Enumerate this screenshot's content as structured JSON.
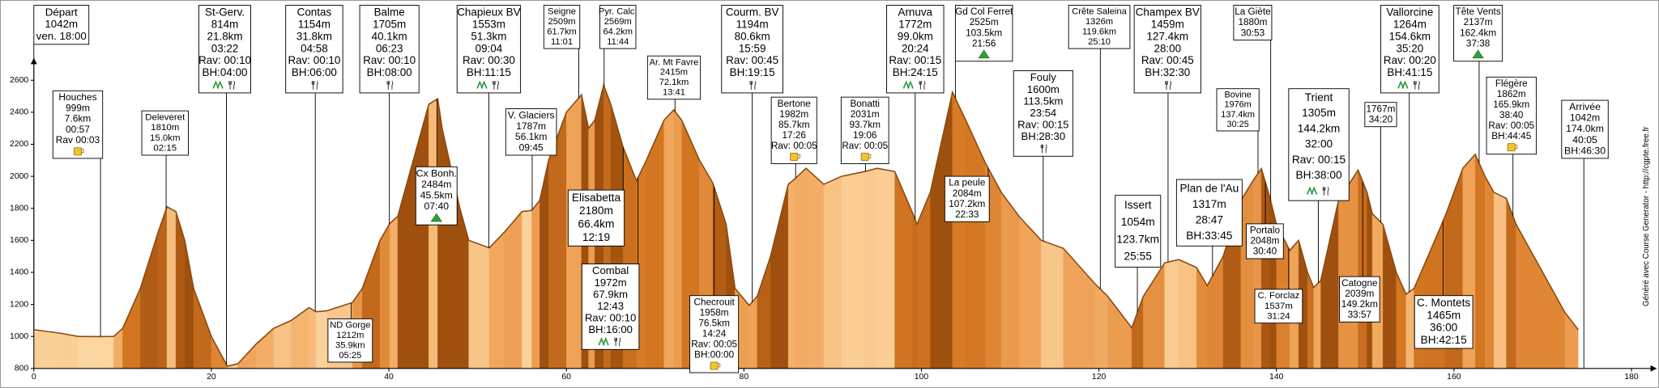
{
  "chart_data": {
    "type": "area",
    "xlim": [
      0,
      180
    ],
    "xticks": [
      0,
      20,
      40,
      60,
      80,
      100,
      120,
      140,
      160,
      180
    ],
    "ylim": [
      800,
      2700
    ],
    "yticks": [
      800,
      1000,
      1200,
      1400,
      1600,
      1800,
      2000,
      2200,
      2400,
      2600
    ],
    "color": "#8a4a10",
    "credit": "Généré avec Course Generator - http://cgpte.free.fr",
    "profile": {
      "x": [
        0,
        3,
        5,
        7.6,
        9,
        10,
        12,
        14,
        15,
        16,
        17,
        18,
        20,
        21.8,
        23,
        25,
        27,
        29,
        31,
        31.8,
        33,
        35.9,
        37,
        38,
        39,
        40.1,
        41,
        43,
        44.5,
        45.5,
        46,
        48,
        49,
        51.3,
        53,
        55,
        56.1,
        57,
        58,
        60,
        61.7,
        62.5,
        63.2,
        64.2,
        65,
        66.4,
        67.9,
        69,
        71,
        72.1,
        73,
        75,
        76.5,
        78,
        79,
        80.6,
        81.5,
        83,
        85,
        85.7,
        87,
        89,
        91,
        93.7,
        95,
        97,
        99,
        99.5,
        101,
        103.5,
        105,
        107.2,
        109,
        111,
        113.5,
        116,
        119.6,
        121,
        123.7,
        125,
        127.4,
        129,
        131,
        132.2,
        134,
        136,
        137.4,
        138.3,
        139.2,
        140,
        141.5,
        142.5,
        143.5,
        144.2,
        145,
        147,
        149.2,
        150.2,
        150.8,
        152,
        153.5,
        154.6,
        155.5,
        156.8,
        159,
        161,
        162.4,
        163.5,
        164.5,
        165.9,
        167,
        169,
        171,
        172.5,
        174
      ],
      "values": [
        1042,
        1020,
        1000,
        999,
        1000,
        1050,
        1300,
        1650,
        1810,
        1780,
        1600,
        1300,
        1000,
        814,
        830,
        950,
        1050,
        1100,
        1180,
        1154,
        1160,
        1212,
        1300,
        1450,
        1600,
        1705,
        1750,
        2150,
        2450,
        2484,
        2300,
        1800,
        1600,
        1553,
        1650,
        1780,
        1787,
        1850,
        2100,
        2400,
        2509,
        2300,
        2350,
        2569,
        2450,
        2180,
        1972,
        2100,
        2350,
        2415,
        2350,
        2100,
        1958,
        1700,
        1300,
        1194,
        1250,
        1500,
        1950,
        1982,
        2050,
        1950,
        2000,
        2031,
        2050,
        2030,
        1772,
        1700,
        1900,
        2525,
        2350,
        2084,
        1900,
        1750,
        1600,
        1550,
        1326,
        1250,
        1054,
        1250,
        1459,
        1480,
        1430,
        1317,
        1500,
        1850,
        1976,
        2048,
        1880,
        1700,
        1537,
        1600,
        1400,
        1305,
        1350,
        1850,
        2039,
        1900,
        1767,
        1700,
        1400,
        1264,
        1300,
        1465,
        1750,
        2050,
        2137,
        2000,
        1900,
        1862,
        1700,
        1500,
        1300,
        1150,
        1042
      ]
    },
    "annotations": [
      [
        "Départ",
        "1042m",
        "ven. 18:00"
      ],
      [
        "Houches",
        "999m",
        "7.6km",
        "00:57",
        "Rav 00:03"
      ],
      [
        "Deleveret",
        "1810m",
        "15.0km",
        "02:15"
      ],
      [
        "St-Gerv.",
        "814m",
        "21.8km",
        "03:22",
        "Rav: 00:10",
        "BH:04:00"
      ],
      [
        "Contas",
        "1154m",
        "31.8km",
        "04:58",
        "Rav: 00:10",
        "BH:06:00"
      ],
      [
        "ND Gorge",
        "1212m",
        "35.9km",
        "05:25"
      ],
      [
        "Balme",
        "1705m",
        "40.1km",
        "06:23",
        "Rav: 00:10",
        "BH:08:00"
      ],
      [
        "Cx Bonh.",
        "2484m",
        "45.5km",
        "07:40"
      ],
      [
        "Chapieux BV",
        "1553m",
        "51.3km",
        "09:04",
        "Rav: 00:30",
        "BH:11:15"
      ],
      [
        "V. Glaciers",
        "1787m",
        "56.1km",
        "09:45"
      ],
      [
        "Seigne",
        "2509m",
        "61.7km",
        "11:01"
      ],
      [
        "Pyr. Calc.",
        "2569m",
        "64.2km",
        "11:44"
      ],
      [
        "Elisabetta",
        "2180m",
        "66.4km",
        "12:19"
      ],
      [
        "Combal",
        "1972m",
        "67.9km",
        "12:43",
        "Rav: 00:10",
        "BH:16:00"
      ],
      [
        "Ar. Mt Favre",
        "2415m",
        "72.1km",
        "13:41"
      ],
      [
        "Checrouit",
        "1958m",
        "76.5km",
        "14:24",
        "Rav: 00:05",
        "BH:00:00"
      ],
      [
        "Courm. BV",
        "1194m",
        "80.6km",
        "15:59",
        "Rav: 00:45",
        "BH:19:15"
      ],
      [
        "Bertone",
        "1982m",
        "85.7km",
        "17:26",
        "Rav: 00:05"
      ],
      [
        "Bonatti",
        "2031m",
        "93.7km",
        "19:06",
        "Rav: 00:05"
      ],
      [
        "Arnuva",
        "1772m",
        "99.0km",
        "20:24",
        "Rav: 00:15",
        "BH:24:15"
      ],
      [
        "Gd Col Ferret",
        "2525m",
        "103.5km",
        "21:56"
      ],
      [
        "La peule",
        "2084m",
        "107.2km",
        "22:33"
      ],
      [
        "Fouly",
        "1600m",
        "113.5km",
        "23:54",
        "Rav: 00:15",
        "BH:28:30"
      ],
      [
        "Crête Saleina",
        "1326m",
        "119.6km",
        "25:10"
      ],
      [
        "Issert",
        "1054m",
        "123.7km",
        "25:55"
      ],
      [
        "Champex BV",
        "1459m",
        "127.4km",
        "28:00",
        "Rav: 00:45",
        "BH:32:30"
      ],
      [
        "Plan de l'Au",
        "1317m",
        "28:47",
        "BH:33:45"
      ],
      [
        "Bovine",
        "1976m",
        "137.4km",
        "30:25"
      ],
      [
        "La Giète",
        "1880m",
        "30:53"
      ],
      [
        "Portalo",
        "2048m",
        "30:40"
      ],
      [
        "Trient",
        "1305m",
        "144.2km",
        "32:00",
        "Rav: 00:15",
        "BH:38:00"
      ],
      [
        "C. Forclaz",
        "1537m",
        "31:24"
      ],
      [
        "Catogne",
        "2039m",
        "149.2km",
        "33:57"
      ],
      [
        "1767m",
        "34:20"
      ],
      [
        "Vallorcine",
        "1264m",
        "154.6km",
        "35:20",
        "Rav: 00:20",
        "BH:41:15"
      ],
      [
        "C. Montets",
        "1465m",
        "36:00",
        "BH:42:15"
      ],
      [
        "Tête Vents",
        "2137m",
        "162.4km",
        "37:38"
      ],
      [
        "Flégère",
        "1862m",
        "165.9km",
        "38:40",
        "Rav: 00:05",
        "BH:44:45"
      ],
      [
        "Arrivée",
        "1042m",
        "174.0km",
        "40:05",
        "BH:46:30"
      ]
    ]
  }
}
